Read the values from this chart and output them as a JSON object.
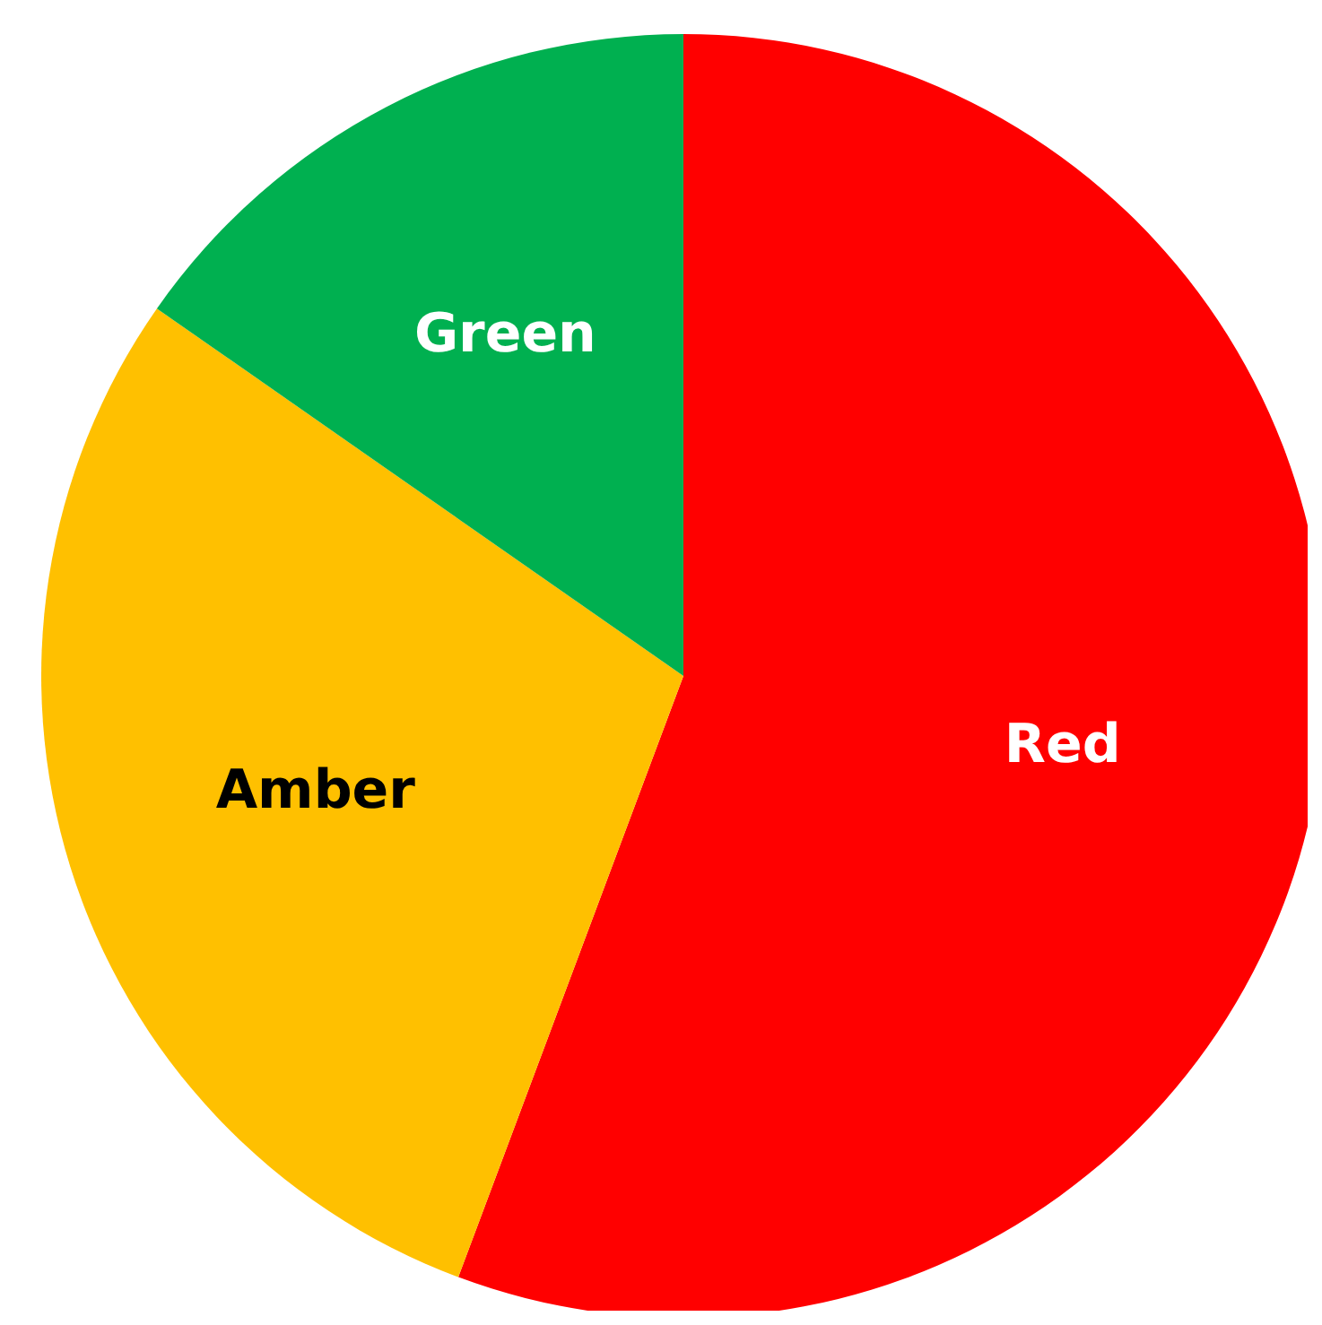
{
  "chart_data": {
    "type": "pie",
    "categories": [
      "Red",
      "Amber",
      "Green"
    ],
    "values": [
      55.7,
      29.0,
      15.3
    ],
    "colors": [
      "#ff0000",
      "#ffc000",
      "#00b050"
    ],
    "legend": false
  }
}
